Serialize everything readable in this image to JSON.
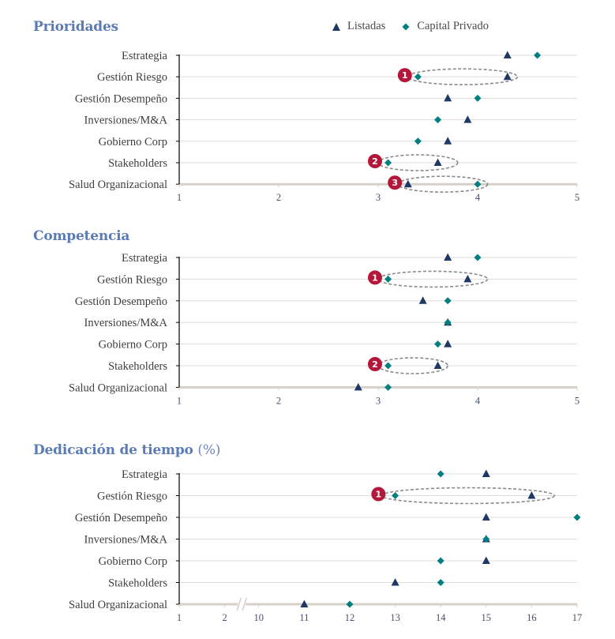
{
  "legend": {
    "series": [
      {
        "name": "Listadas",
        "marker": "triangle",
        "color": "#1f3864"
      },
      {
        "name": "Capital Privado",
        "marker": "diamond",
        "color": "#007f80"
      }
    ]
  },
  "colors": {
    "title": "#5b7bb5",
    "annotation_badge": "#b3173a",
    "grid": "#dddddd",
    "baseline": "#d6d1c8"
  },
  "chart_data": [
    {
      "type": "scatter",
      "title": "Prioridades",
      "title_unit": "",
      "categories": [
        "Estrategia",
        "Gestión Riesgo",
        "Gestión Desempeño",
        "Inversiones/M&A",
        "Gobierno Corp",
        "Stakeholders",
        "Salud Organizacional"
      ],
      "series": [
        {
          "name": "Listadas",
          "values": [
            4.3,
            4.3,
            3.7,
            3.9,
            3.7,
            3.6,
            3.3
          ]
        },
        {
          "name": "Capital Privado",
          "values": [
            4.6,
            3.4,
            4.0,
            3.6,
            3.4,
            3.1,
            4.0
          ]
        }
      ],
      "xticks": [
        "1",
        "2",
        "3",
        "4",
        "5"
      ],
      "xlim": [
        1,
        5
      ],
      "grid": true,
      "annotations": [
        {
          "label": "1",
          "category": "Gestión Riesgo",
          "from": 3.3,
          "to": 4.4
        },
        {
          "label": "2",
          "category": "Stakeholders",
          "from": 3.0,
          "to": 3.8
        },
        {
          "label": "3",
          "category": "Salud Organizacional",
          "from": 3.2,
          "to": 4.1
        }
      ]
    },
    {
      "type": "scatter",
      "title": "Competencia",
      "title_unit": "",
      "categories": [
        "Estrategia",
        "Gestión Riesgo",
        "Gestión Desempeño",
        "Inversiones/M&A",
        "Gobierno Corp",
        "Stakeholders",
        "Salud Organizacional"
      ],
      "series": [
        {
          "name": "Listadas",
          "values": [
            3.7,
            3.9,
            3.45,
            3.7,
            3.7,
            3.6,
            2.8
          ]
        },
        {
          "name": "Capital Privado",
          "values": [
            4.0,
            3.1,
            3.7,
            3.7,
            3.6,
            3.1,
            3.1
          ]
        }
      ],
      "xticks": [
        "1",
        "2",
        "3",
        "4",
        "5"
      ],
      "xlim": [
        1,
        5
      ],
      "grid": true,
      "annotations": [
        {
          "label": "1",
          "category": "Gestión Riesgo",
          "from": 3.0,
          "to": 4.1
        },
        {
          "label": "2",
          "category": "Stakeholders",
          "from": 3.0,
          "to": 3.7
        }
      ]
    },
    {
      "type": "scatter",
      "title": "Dedicación de tiempo",
      "title_unit": "(%)",
      "categories": [
        "Estrategia",
        "Gestión Riesgo",
        "Gestión Desempeño",
        "Inversiones/M&A",
        "Gobierno Corp",
        "Stakeholders",
        "Salud Organizacional"
      ],
      "series": [
        {
          "name": "Listadas",
          "values": [
            15,
            16,
            15,
            15,
            15,
            13,
            11
          ]
        },
        {
          "name": "Capital Privado",
          "values": [
            14,
            13,
            17,
            15,
            14,
            14,
            12
          ]
        }
      ],
      "xticks": [
        "1",
        "2",
        "10",
        "11",
        "12",
        "13",
        "14",
        "15",
        "16",
        "17"
      ],
      "xlim": [
        1,
        17
      ],
      "axis_break": [
        2,
        10
      ],
      "grid": true,
      "annotations": [
        {
          "label": "1",
          "category": "Gestión Riesgo",
          "from": 12.7,
          "to": 16.5
        }
      ]
    }
  ]
}
